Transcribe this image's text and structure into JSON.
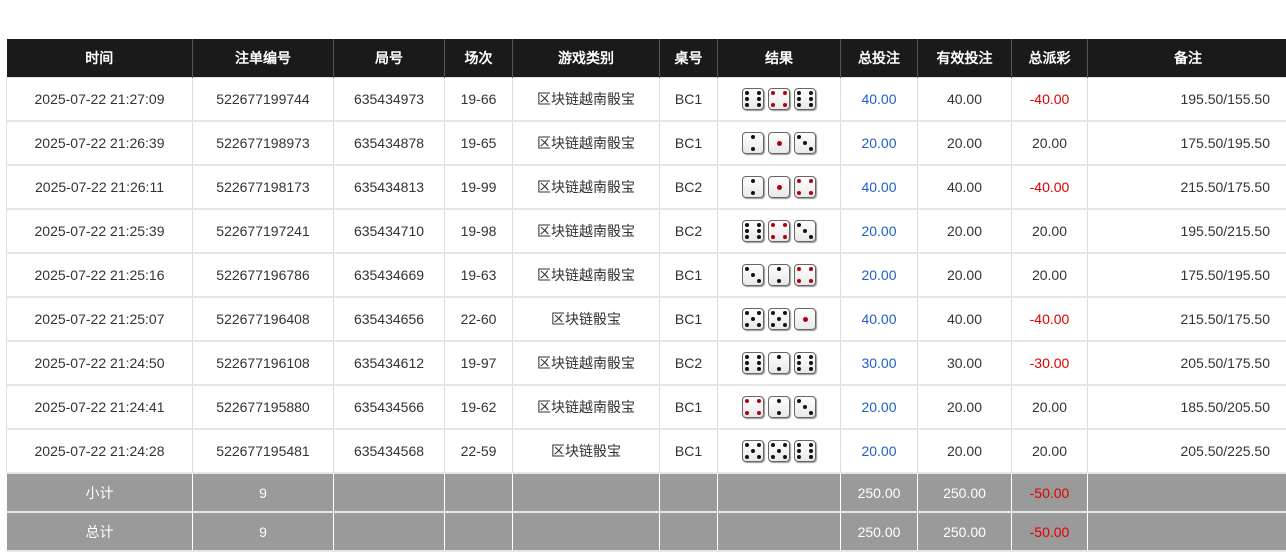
{
  "headers": [
    "时间",
    "注单编号",
    "局号",
    "场次",
    "游戏类别",
    "桌号",
    "结果",
    "总投注",
    "有效投注",
    "总派彩",
    "备注"
  ],
  "rows": [
    {
      "time": "2025-07-22 21:27:09",
      "bet_id": "522677199744",
      "round": "635434973",
      "shoe": "19-66",
      "game": "区块链越南骰宝",
      "table": "BC1",
      "dice": [
        6,
        4,
        6
      ],
      "bet": "40.00",
      "valid": "40.00",
      "payout": "-40.00",
      "note": "195.50/155.50"
    },
    {
      "time": "2025-07-22 21:26:39",
      "bet_id": "522677198973",
      "round": "635434878",
      "shoe": "19-65",
      "game": "区块链越南骰宝",
      "table": "BC1",
      "dice": [
        2,
        1,
        3
      ],
      "bet": "20.00",
      "valid": "20.00",
      "payout": "20.00",
      "note": "175.50/195.50"
    },
    {
      "time": "2025-07-22 21:26:11",
      "bet_id": "522677198173",
      "round": "635434813",
      "shoe": "19-99",
      "game": "区块链越南骰宝",
      "table": "BC2",
      "dice": [
        2,
        1,
        4
      ],
      "bet": "40.00",
      "valid": "40.00",
      "payout": "-40.00",
      "note": "215.50/175.50"
    },
    {
      "time": "2025-07-22 21:25:39",
      "bet_id": "522677197241",
      "round": "635434710",
      "shoe": "19-98",
      "game": "区块链越南骰宝",
      "table": "BC2",
      "dice": [
        6,
        4,
        3
      ],
      "bet": "20.00",
      "valid": "20.00",
      "payout": "20.00",
      "note": "195.50/215.50"
    },
    {
      "time": "2025-07-22 21:25:16",
      "bet_id": "522677196786",
      "round": "635434669",
      "shoe": "19-63",
      "game": "区块链越南骰宝",
      "table": "BC1",
      "dice": [
        3,
        2,
        4
      ],
      "bet": "20.00",
      "valid": "20.00",
      "payout": "20.00",
      "note": "175.50/195.50"
    },
    {
      "time": "2025-07-22 21:25:07",
      "bet_id": "522677196408",
      "round": "635434656",
      "shoe": "22-60",
      "game": "区块链骰宝",
      "table": "BC1",
      "dice": [
        5,
        5,
        1
      ],
      "bet": "40.00",
      "valid": "40.00",
      "payout": "-40.00",
      "note": "215.50/175.50"
    },
    {
      "time": "2025-07-22 21:24:50",
      "bet_id": "522677196108",
      "round": "635434612",
      "shoe": "19-97",
      "game": "区块链越南骰宝",
      "table": "BC2",
      "dice": [
        6,
        2,
        6
      ],
      "bet": "30.00",
      "valid": "30.00",
      "payout": "-30.00",
      "note": "205.50/175.50"
    },
    {
      "time": "2025-07-22 21:24:41",
      "bet_id": "522677195880",
      "round": "635434566",
      "shoe": "19-62",
      "game": "区块链越南骰宝",
      "table": "BC1",
      "dice": [
        4,
        2,
        3
      ],
      "bet": "20.00",
      "valid": "20.00",
      "payout": "20.00",
      "note": "185.50/205.50"
    },
    {
      "time": "2025-07-22 21:24:28",
      "bet_id": "522677195481",
      "round": "635434568",
      "shoe": "22-59",
      "game": "区块链骰宝",
      "table": "BC1",
      "dice": [
        5,
        5,
        6
      ],
      "bet": "20.00",
      "valid": "20.00",
      "payout": "20.00",
      "note": "205.50/225.50"
    }
  ],
  "subtotal": {
    "label": "小计",
    "count": "9",
    "bet": "250.00",
    "valid": "250.00",
    "payout": "-50.00"
  },
  "total": {
    "label": "总计",
    "count": "9",
    "bet": "250.00",
    "valid": "250.00",
    "payout": "-50.00"
  },
  "colors": {
    "header_bg": "#1a1a1a",
    "bet_blue": "#1e5fc8",
    "loss_red": "#e00000",
    "summary_bg": "#9a9a9a"
  }
}
